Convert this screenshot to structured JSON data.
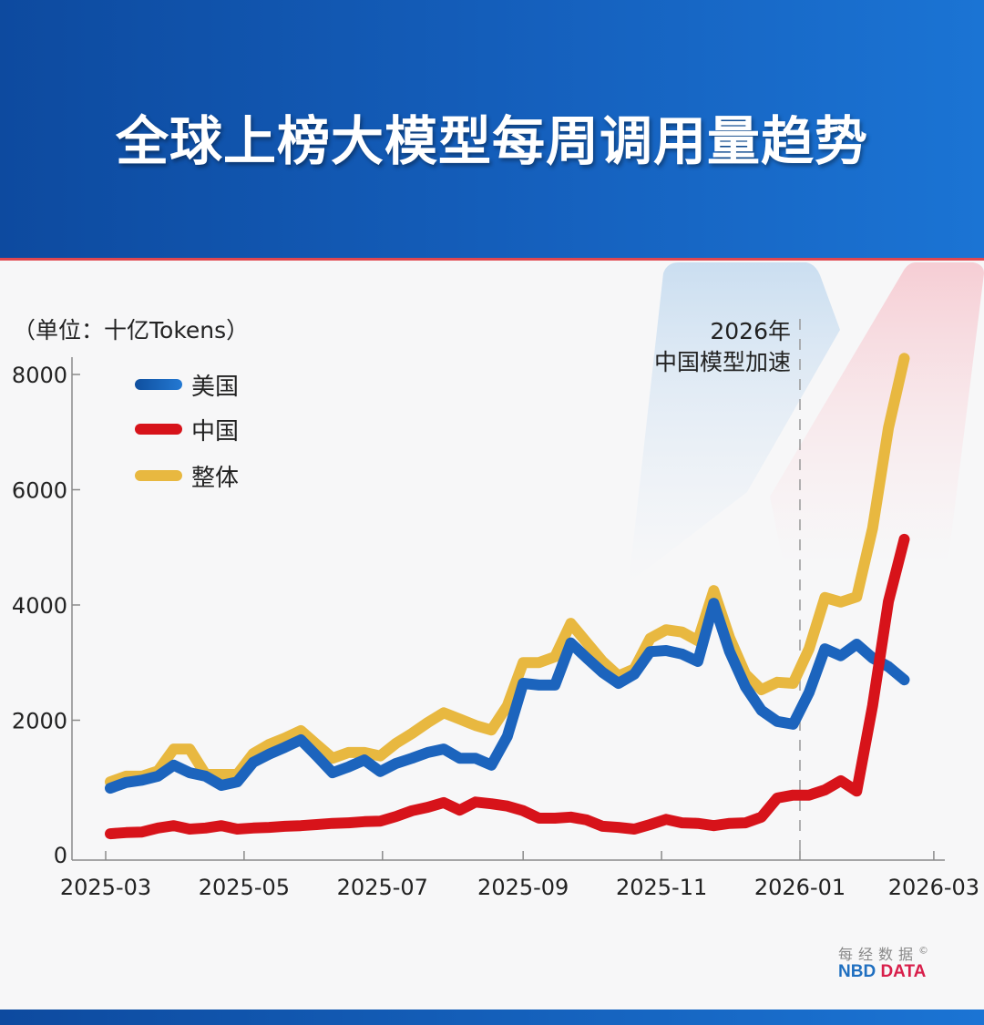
{
  "title": "全球上榜大模型每周调用量趋势",
  "unit_label": "（单位：十亿Tokens）",
  "annotation": {
    "line1": "2026年",
    "line2": "中国模型加速"
  },
  "logo": {
    "cn": "每经数据",
    "copyright": "©",
    "en_part1": "NBD",
    "en_part2": "DATA"
  },
  "colors": {
    "us": "#1c64bd",
    "china": "#d7131a",
    "total": "#e8b840",
    "header": "#1560bd"
  },
  "chart_data": {
    "type": "line",
    "ylim": [
      -350,
      8300
    ],
    "yticks": [
      0,
      2000,
      4000,
      6000,
      8000
    ],
    "xticks": [
      "2025-03",
      "2025-05",
      "2025-07",
      "2025-09",
      "2025-11",
      "2026-01",
      "2026-03"
    ],
    "xlim": [
      "2025-03-01",
      "2026-03-01"
    ],
    "legend": "top-left",
    "grid": false,
    "annotation_line_x": "2026-01",
    "x": [
      "2025-03-03",
      "2025-03-10",
      "2025-03-17",
      "2025-03-24",
      "2025-03-31",
      "2025-04-07",
      "2025-04-14",
      "2025-04-21",
      "2025-04-28",
      "2025-05-05",
      "2025-05-12",
      "2025-05-19",
      "2025-05-26",
      "2025-06-02",
      "2025-06-09",
      "2025-06-16",
      "2025-06-23",
      "2025-06-30",
      "2025-07-07",
      "2025-07-14",
      "2025-07-21",
      "2025-07-28",
      "2025-08-04",
      "2025-08-11",
      "2025-08-18",
      "2025-08-25",
      "2025-09-01",
      "2025-09-08",
      "2025-09-15",
      "2025-09-22",
      "2025-09-29",
      "2025-10-06",
      "2025-10-13",
      "2025-10-20",
      "2025-10-27",
      "2025-11-03",
      "2025-11-10",
      "2025-11-17",
      "2025-11-24",
      "2025-12-01",
      "2025-12-08",
      "2025-12-15",
      "2025-12-22",
      "2025-12-29",
      "2026-01-05",
      "2026-01-12",
      "2026-01-19",
      "2026-01-26",
      "2026-02-02",
      "2026-02-09",
      "2026-02-16"
    ],
    "series": [
      {
        "name": "美国",
        "key": "us",
        "values": [
          820,
          920,
          960,
          1030,
          1220,
          1090,
          1030,
          870,
          930,
          1270,
          1410,
          1530,
          1660,
          1380,
          1090,
          1190,
          1310,
          1110,
          1250,
          1340,
          1440,
          1500,
          1340,
          1340,
          1220,
          1720,
          2640,
          2610,
          2610,
          3340,
          3080,
          2830,
          2640,
          2800,
          3190,
          3210,
          3150,
          3020,
          4030,
          3190,
          2580,
          2170,
          1980,
          1930,
          2480,
          3240,
          3120,
          3320,
          3080,
          2930,
          2700
        ]
      },
      {
        "name": "中国",
        "key": "china",
        "values": [
          30,
          50,
          60,
          130,
          170,
          110,
          130,
          170,
          110,
          130,
          140,
          160,
          170,
          190,
          210,
          220,
          240,
          250,
          330,
          430,
          490,
          570,
          440,
          580,
          550,
          510,
          430,
          300,
          300,
          320,
          270,
          160,
          140,
          110,
          190,
          280,
          220,
          210,
          170,
          210,
          220,
          320,
          650,
          700,
          700,
          790,
          950,
          770,
          2250,
          4060,
          5140
        ]
      },
      {
        "name": "整体",
        "key": "total",
        "values": [
          930,
          1030,
          1030,
          1120,
          1500,
          1500,
          1060,
          1060,
          1060,
          1420,
          1580,
          1690,
          1820,
          1580,
          1340,
          1440,
          1440,
          1380,
          1600,
          1770,
          1960,
          2130,
          2020,
          1910,
          1830,
          2250,
          3000,
          3000,
          3100,
          3680,
          3350,
          3020,
          2770,
          2890,
          3420,
          3570,
          3530,
          3380,
          4250,
          3430,
          2800,
          2530,
          2660,
          2640,
          3240,
          4130,
          4050,
          4140,
          5330,
          7070,
          8280
        ]
      }
    ]
  }
}
